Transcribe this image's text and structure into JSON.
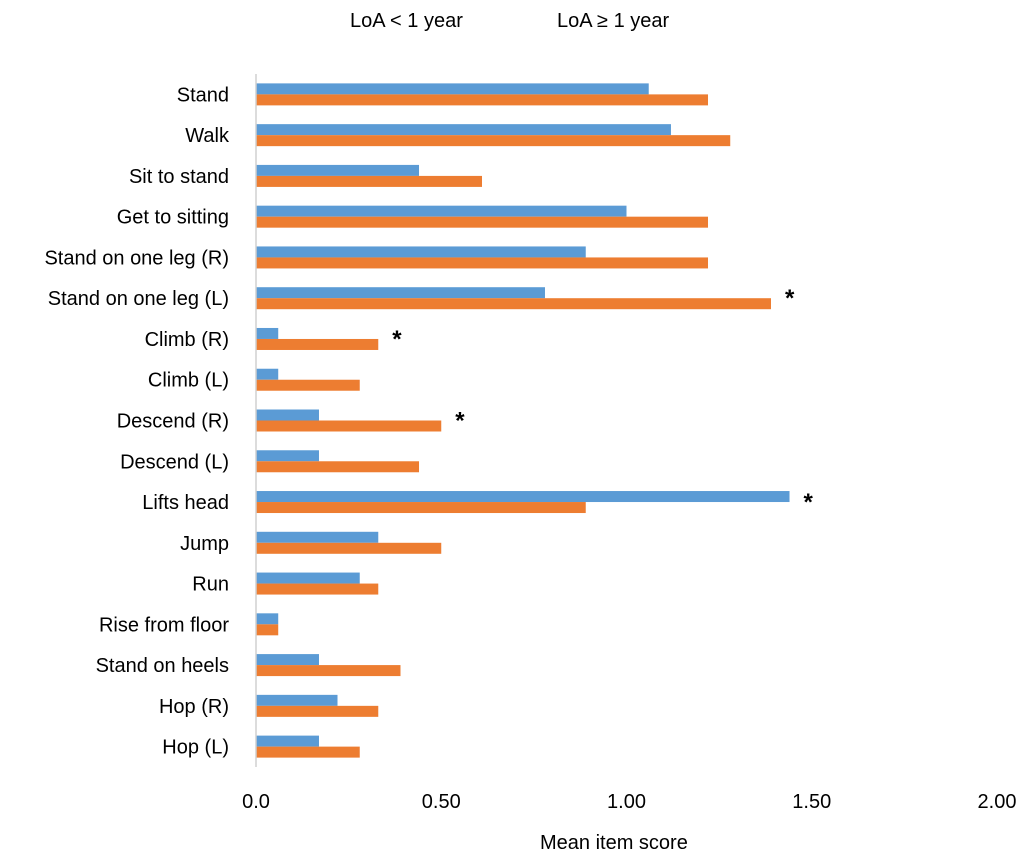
{
  "chart_data": {
    "type": "bar",
    "orientation": "horizontal",
    "xlabel": "Mean item score",
    "xlim": [
      0,
      2.0
    ],
    "xticks": [
      "0.0",
      "0.50",
      "1.00",
      "1.50",
      "2.00"
    ],
    "xtick_values": [
      0,
      0.5,
      1.0,
      1.5,
      2.0
    ],
    "grid": false,
    "legend_position": "top",
    "categories": [
      "Stand",
      "Walk",
      "Sit to stand",
      "Get to sitting",
      "Stand on one leg (R)",
      "Stand on one leg (L)",
      "Climb (R)",
      "Climb (L)",
      "Descend (R)",
      "Descend (L)",
      "Lifts head",
      "Jump",
      "Run",
      "Rise from floor",
      "Stand on heels",
      "Hop (R)",
      "Hop (L)"
    ],
    "series": [
      {
        "name": "LoA < 1 year",
        "color": "#5b9bd5",
        "values": [
          1.06,
          1.12,
          0.44,
          1.0,
          0.89,
          0.78,
          0.06,
          0.06,
          0.17,
          0.17,
          1.44,
          0.33,
          0.28,
          0.06,
          0.17,
          0.22,
          0.17
        ]
      },
      {
        "name": "LoA ≥ 1 year",
        "color": "#ed7d31",
        "values": [
          1.22,
          1.28,
          0.61,
          1.22,
          1.22,
          1.39,
          0.33,
          0.28,
          0.5,
          0.44,
          0.89,
          0.5,
          0.33,
          0.06,
          0.39,
          0.33,
          0.28
        ]
      }
    ],
    "significance_marker": "*",
    "significant_categories": [
      "Stand on one leg (L)",
      "Climb (R)",
      "Descend (R)",
      "Lifts head"
    ]
  }
}
